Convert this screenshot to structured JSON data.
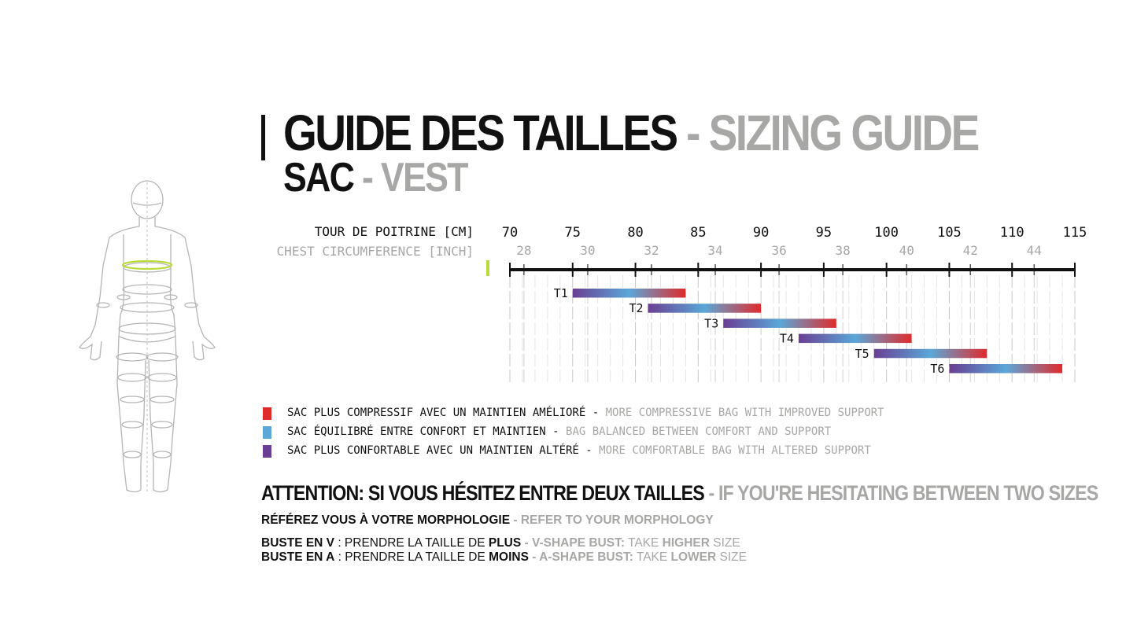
{
  "header": {
    "title_fr": "GUIDE DES TAILLES",
    "title_sep": " - ",
    "title_en": "SIZING GUIDE",
    "subtitle_fr": "SAC",
    "subtitle_sep": " - ",
    "subtitle_en": "VEST"
  },
  "colors": {
    "red": "#e02b2b",
    "blue": "#5aa7d8",
    "purple": "#6a3f93",
    "grey_text": "#a7a7a5",
    "figure_highlight": "#b7dc3a"
  },
  "chart_data": {
    "type": "range-bar",
    "axis_primary_label": "TOUR DE POITRINE [CM]",
    "axis_secondary_label": "CHEST CIRCUMFERENCE [INCH]",
    "xlim_cm": [
      70,
      115
    ],
    "ticks_cm": [
      "70",
      "75",
      "80",
      "85",
      "90",
      "95",
      "100",
      "105",
      "110",
      "115"
    ],
    "ticks_inch": [
      "28",
      "30",
      "32",
      "34",
      "36",
      "38",
      "40",
      "42",
      "44"
    ],
    "series": [
      {
        "name": "T1",
        "start": 75,
        "end": 84
      },
      {
        "name": "T2",
        "start": 81,
        "end": 90
      },
      {
        "name": "T3",
        "start": 87,
        "end": 96
      },
      {
        "name": "T4",
        "start": 93,
        "end": 102
      },
      {
        "name": "T5",
        "start": 99,
        "end": 108
      },
      {
        "name": "T6",
        "start": 105,
        "end": 114
      }
    ],
    "gradient": [
      "purple",
      "blue",
      "red"
    ]
  },
  "legend": [
    {
      "color": "#e02b2b",
      "fr": "SAC PLUS COMPRESSIF AVEC UN MAINTIEN AMÉLIORÉ",
      "sep": " - ",
      "en": "MORE COMPRESSIVE BAG WITH IMPROVED SUPPORT"
    },
    {
      "color": "#5aa7d8",
      "fr": "SAC ÉQUILIBRÉ ENTRE CONFORT ET MAINTIEN",
      "sep": " - ",
      "en": "BAG BALANCED BETWEEN COMFORT AND SUPPORT"
    },
    {
      "color": "#6a3f93",
      "fr": "SAC PLUS CONFORTABLE AVEC UN MAINTIEN ALTÉRÉ",
      "sep": " - ",
      "en": "MORE COMFORTABLE BAG WITH ALTERED SUPPORT"
    }
  ],
  "notes": {
    "attention_fr": "ATTENTION: SI VOUS HÉSITEZ ENTRE DEUX TAILLES",
    "attention_sep": " - ",
    "attention_en": "IF YOU'RE HESITATING BETWEEN TWO SIZES",
    "morpho_fr": "RÉFÉREZ VOUS À VOTRE MORPHOLOGIE",
    "morpho_sep": " - ",
    "morpho_en": "REFER TO YOUR MORPHOLOGY",
    "v_label": "BUSTE EN V",
    "v_text": " : PRENDRE LA TAILLE DE ",
    "v_strong": "PLUS",
    "v_sep": " - ",
    "v_en_label": "V-SHAPE BUST:",
    "v_en_take": " TAKE ",
    "v_en_strong": "HIGHER",
    "v_en_size": " SIZE",
    "a_label": "BUSTE EN A",
    "a_text": "  : PRENDRE LA TAILLE DE ",
    "a_strong": "MOINS",
    "a_sep": " -  ",
    "a_en_label": "A-SHAPE BUST:",
    "a_en_take": " TAKE ",
    "a_en_strong": "LOWER",
    "a_en_size": " SIZE"
  }
}
